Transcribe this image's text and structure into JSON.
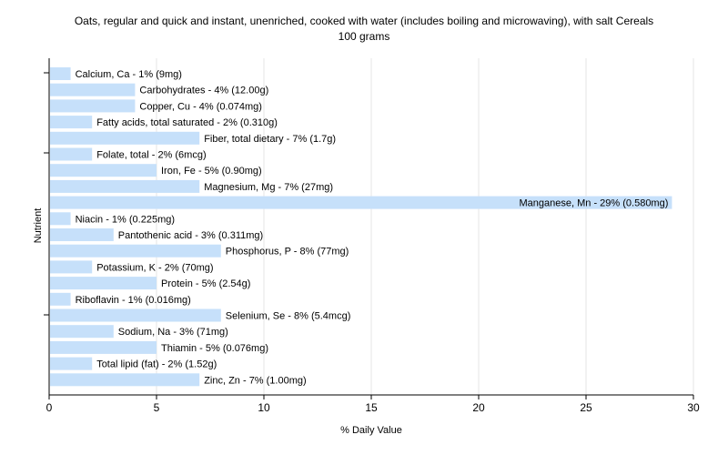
{
  "chart_data": {
    "type": "bar",
    "orientation": "horizontal",
    "title": "Oats, regular and quick and instant, unenriched, cooked with water (includes boiling and microwaving), with salt Cereals",
    "subtitle": "100 grams",
    "xlabel": "% Daily Value",
    "ylabel": "Nutrient",
    "xlim": [
      0,
      30
    ],
    "xticks": [
      0,
      5,
      10,
      15,
      20,
      25,
      30
    ],
    "grid": true,
    "bar_color": "#c6e0fa",
    "categories": [
      "Calcium, Ca",
      "Carbohydrates",
      "Copper, Cu",
      "Fatty acids, total saturated",
      "Fiber, total dietary",
      "Folate, total",
      "Iron, Fe",
      "Magnesium, Mg",
      "Manganese, Mn",
      "Niacin",
      "Pantothenic acid",
      "Phosphorus, P",
      "Potassium, K",
      "Protein",
      "Riboflavin",
      "Selenium, Se",
      "Sodium, Na",
      "Thiamin",
      "Total lipid (fat)",
      "Zinc, Zn"
    ],
    "values": [
      1,
      4,
      4,
      2,
      7,
      2,
      5,
      7,
      29,
      1,
      3,
      8,
      2,
      5,
      1,
      8,
      3,
      5,
      2,
      7
    ],
    "labels": [
      "Calcium, Ca - 1% (9mg)",
      "Carbohydrates - 4% (12.00g)",
      "Copper, Cu - 4% (0.074mg)",
      "Fatty acids, total saturated - 2% (0.310g)",
      "Fiber, total dietary - 7% (1.7g)",
      "Folate, total - 2% (6mcg)",
      "Iron, Fe - 5% (0.90mg)",
      "Magnesium, Mg - 7% (27mg)",
      "Manganese, Mn - 29% (0.580mg)",
      "Niacin - 1% (0.225mg)",
      "Pantothenic acid - 3% (0.311mg)",
      "Phosphorus, P - 8% (77mg)",
      "Potassium, K - 2% (70mg)",
      "Protein - 5% (2.54g)",
      "Riboflavin - 1% (0.016mg)",
      "Selenium, Se - 8% (5.4mcg)",
      "Sodium, Na - 3% (71mg)",
      "Thiamin - 5% (0.076mg)",
      "Total lipid (fat) - 2% (1.52g)",
      "Zinc, Zn - 7% (1.00mg)"
    ]
  }
}
